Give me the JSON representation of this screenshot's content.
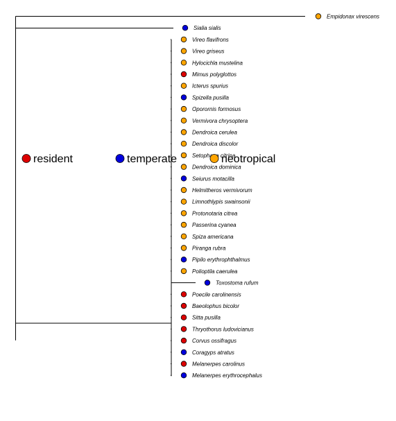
{
  "chart_data": {
    "type": "phylogenetic-tree",
    "legend": {
      "placement": "center-left",
      "entries": [
        {
          "label": "resident",
          "color": "#dd0000"
        },
        {
          "label": "temperate",
          "color": "#0000dd"
        },
        {
          "label": "neotropical",
          "color": "#ffa500"
        }
      ]
    },
    "tips": [
      {
        "name": "Empidonax virescens",
        "category": "neotropical"
      },
      {
        "name": "Sialia sialis",
        "category": "temperate"
      },
      {
        "name": "Vireo flavifrons",
        "category": "neotropical"
      },
      {
        "name": "Vireo griseus",
        "category": "neotropical"
      },
      {
        "name": "Hylocichla mustelina",
        "category": "neotropical"
      },
      {
        "name": "Mimus polyglottos",
        "category": "resident"
      },
      {
        "name": "Icterus spurius",
        "category": "neotropical"
      },
      {
        "name": "Spizella pusilla",
        "category": "temperate"
      },
      {
        "name": "Oporornis formosus",
        "category": "neotropical"
      },
      {
        "name": "Vermivora chrysoptera",
        "category": "neotropical"
      },
      {
        "name": "Dendroica cerulea",
        "category": "neotropical"
      },
      {
        "name": "Dendroica discolor",
        "category": "neotropical"
      },
      {
        "name": "Setophaga citrina",
        "category": "neotropical"
      },
      {
        "name": "Dendroica dominica",
        "category": "neotropical"
      },
      {
        "name": "Seiurus motacilla",
        "category": "temperate"
      },
      {
        "name": "Helmitheros vermivorum",
        "category": "neotropical"
      },
      {
        "name": "Limnothlypis swainsonii",
        "category": "neotropical"
      },
      {
        "name": "Protonotaria citrea",
        "category": "neotropical"
      },
      {
        "name": "Passerina cyanea",
        "category": "neotropical"
      },
      {
        "name": "Spiza americana",
        "category": "neotropical"
      },
      {
        "name": "Piranga rubra",
        "category": "neotropical"
      },
      {
        "name": "Pipilo erythrophthalmus",
        "category": "temperate"
      },
      {
        "name": "Polioptila caerulea",
        "category": "neotropical"
      },
      {
        "name": "Toxostoma rufum",
        "category": "temperate"
      },
      {
        "name": "Poecile carolinensis",
        "category": "resident"
      },
      {
        "name": "Baeolophus bicolor",
        "category": "resident"
      },
      {
        "name": "Sitta pusilla",
        "category": "resident"
      },
      {
        "name": "Thryothorus ludovicianus",
        "category": "resident"
      },
      {
        "name": "Corvus ossifragus",
        "category": "resident"
      },
      {
        "name": "Coragyps atratus",
        "category": "temperate"
      },
      {
        "name": "Melanerpes carolinus",
        "category": "resident"
      },
      {
        "name": "Melanerpes erythrocephalus",
        "category": "temperate"
      }
    ]
  }
}
